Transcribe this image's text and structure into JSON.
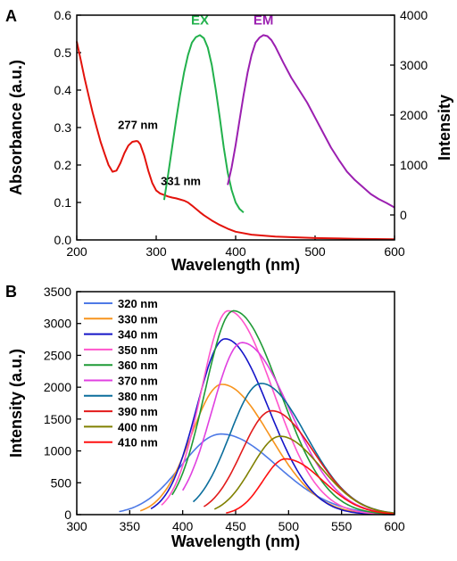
{
  "chart_data": [
    {
      "panel": "A",
      "type": "line",
      "xlabel": "Wavelength (nm)",
      "ylabel": "Absorbance (a.u.)",
      "ylabel_right": "Intensity",
      "xlim": [
        200,
        600
      ],
      "ylim": [
        0,
        0.6
      ],
      "ylim_right": [
        -500,
        4000
      ],
      "xticks": [
        "200",
        "300",
        "400",
        "500",
        "600"
      ],
      "yticks": [
        "0.0",
        "0.1",
        "0.2",
        "0.3",
        "0.4",
        "0.5",
        "0.6"
      ],
      "yticks_right": [
        "0",
        "1000",
        "2000",
        "3000",
        "4000"
      ],
      "annotations": [
        {
          "text": "277 nm",
          "x": 277,
          "y": 0.263
        },
        {
          "text": "331 nm",
          "x": 331,
          "y": 0.118
        }
      ],
      "series": [
        {
          "name": "",
          "axis": "left",
          "color": "#e3120b",
          "x": [
            200,
            205,
            210,
            215,
            220,
            225,
            230,
            235,
            240,
            245,
            250,
            255,
            260,
            265,
            270,
            275,
            277,
            280,
            285,
            290,
            295,
            300,
            305,
            310,
            315,
            320,
            325,
            330,
            335,
            340,
            345,
            350,
            355,
            360,
            370,
            380,
            390,
            400,
            420,
            450,
            500,
            550,
            600
          ],
          "y": [
            0.53,
            0.48,
            0.43,
            0.385,
            0.34,
            0.3,
            0.262,
            0.23,
            0.2,
            0.182,
            0.185,
            0.205,
            0.232,
            0.252,
            0.262,
            0.264,
            0.263,
            0.255,
            0.225,
            0.185,
            0.152,
            0.132,
            0.124,
            0.12,
            0.116,
            0.113,
            0.111,
            0.108,
            0.105,
            0.1,
            0.092,
            0.083,
            0.074,
            0.066,
            0.052,
            0.04,
            0.03,
            0.022,
            0.014,
            0.009,
            0.005,
            0.003,
            0.002
          ]
        },
        {
          "name": "EX",
          "axis": "right",
          "color": "#22b14c",
          "x": [
            310,
            315,
            320,
            325,
            330,
            335,
            340,
            345,
            350,
            355,
            360,
            365,
            370,
            375,
            380,
            385,
            390,
            395,
            400,
            405,
            410
          ],
          "y": [
            300,
            800,
            1350,
            1900,
            2400,
            2850,
            3200,
            3450,
            3560,
            3600,
            3540,
            3350,
            3000,
            2500,
            1950,
            1350,
            850,
            500,
            250,
            120,
            50
          ]
        },
        {
          "name": "EM",
          "axis": "right",
          "color": "#9b1fb0",
          "x": [
            390,
            395,
            400,
            405,
            410,
            415,
            420,
            425,
            430,
            435,
            440,
            445,
            450,
            460,
            470,
            480,
            490,
            500,
            510,
            520,
            530,
            540,
            550,
            560,
            570,
            580,
            590,
            600
          ],
          "y": [
            600,
            950,
            1400,
            1900,
            2400,
            2850,
            3200,
            3450,
            3550,
            3600,
            3580,
            3500,
            3370,
            3050,
            2750,
            2500,
            2250,
            1950,
            1650,
            1350,
            1100,
            870,
            700,
            560,
            420,
            320,
            240,
            150
          ]
        }
      ]
    },
    {
      "panel": "B",
      "type": "line",
      "xlabel": "Wavelength (nm)",
      "ylabel": "Intensity (a.u.)",
      "xlim": [
        300,
        600
      ],
      "ylim": [
        0,
        3500
      ],
      "xticks": [
        "300",
        "350",
        "400",
        "450",
        "500",
        "550",
        "600"
      ],
      "yticks": [
        "0",
        "500",
        "1000",
        "1500",
        "2000",
        "2500",
        "3000",
        "3500"
      ],
      "legend_position": "top-left",
      "series": [
        {
          "name": "320 nm",
          "color": "#4e7ae6",
          "start": 340,
          "peak": 436,
          "amp": 1265,
          "wl": 53,
          "wr": 75
        },
        {
          "name": "330 nm",
          "color": "#f7941d",
          "start": 360,
          "peak": 437,
          "amp": 2045,
          "wl": 41,
          "wr": 64
        },
        {
          "name": "340 nm",
          "color": "#1515c8",
          "start": 370,
          "peak": 440,
          "amp": 2760,
          "wl": 38,
          "wr": 58
        },
        {
          "name": "350 nm",
          "color": "#ff55cc",
          "start": 380,
          "peak": 443,
          "amp": 3200,
          "wl": 36,
          "wr": 60
        },
        {
          "name": "360 nm",
          "color": "#1f9a36",
          "start": 390,
          "peak": 448,
          "amp": 3200,
          "wl": 38,
          "wr": 62
        },
        {
          "name": "370 nm",
          "color": "#e040e0",
          "start": 400,
          "peak": 456,
          "amp": 2700,
          "wl": 40,
          "wr": 64
        },
        {
          "name": "380 nm",
          "color": "#0b6e9c",
          "start": 410,
          "peak": 474,
          "amp": 2060,
          "wl": 42,
          "wr": 60
        },
        {
          "name": "390 nm",
          "color": "#e21a1a",
          "start": 420,
          "peak": 484,
          "amp": 1630,
          "wl": 40,
          "wr": 56
        },
        {
          "name": "400 nm",
          "color": "#808000",
          "start": 430,
          "peak": 492,
          "amp": 1230,
          "wl": 38,
          "wr": 54
        },
        {
          "name": "410 nm",
          "color": "#ff1010",
          "start": 441,
          "peak": 497,
          "amp": 875,
          "wl": 30,
          "wr": 50
        }
      ]
    }
  ]
}
